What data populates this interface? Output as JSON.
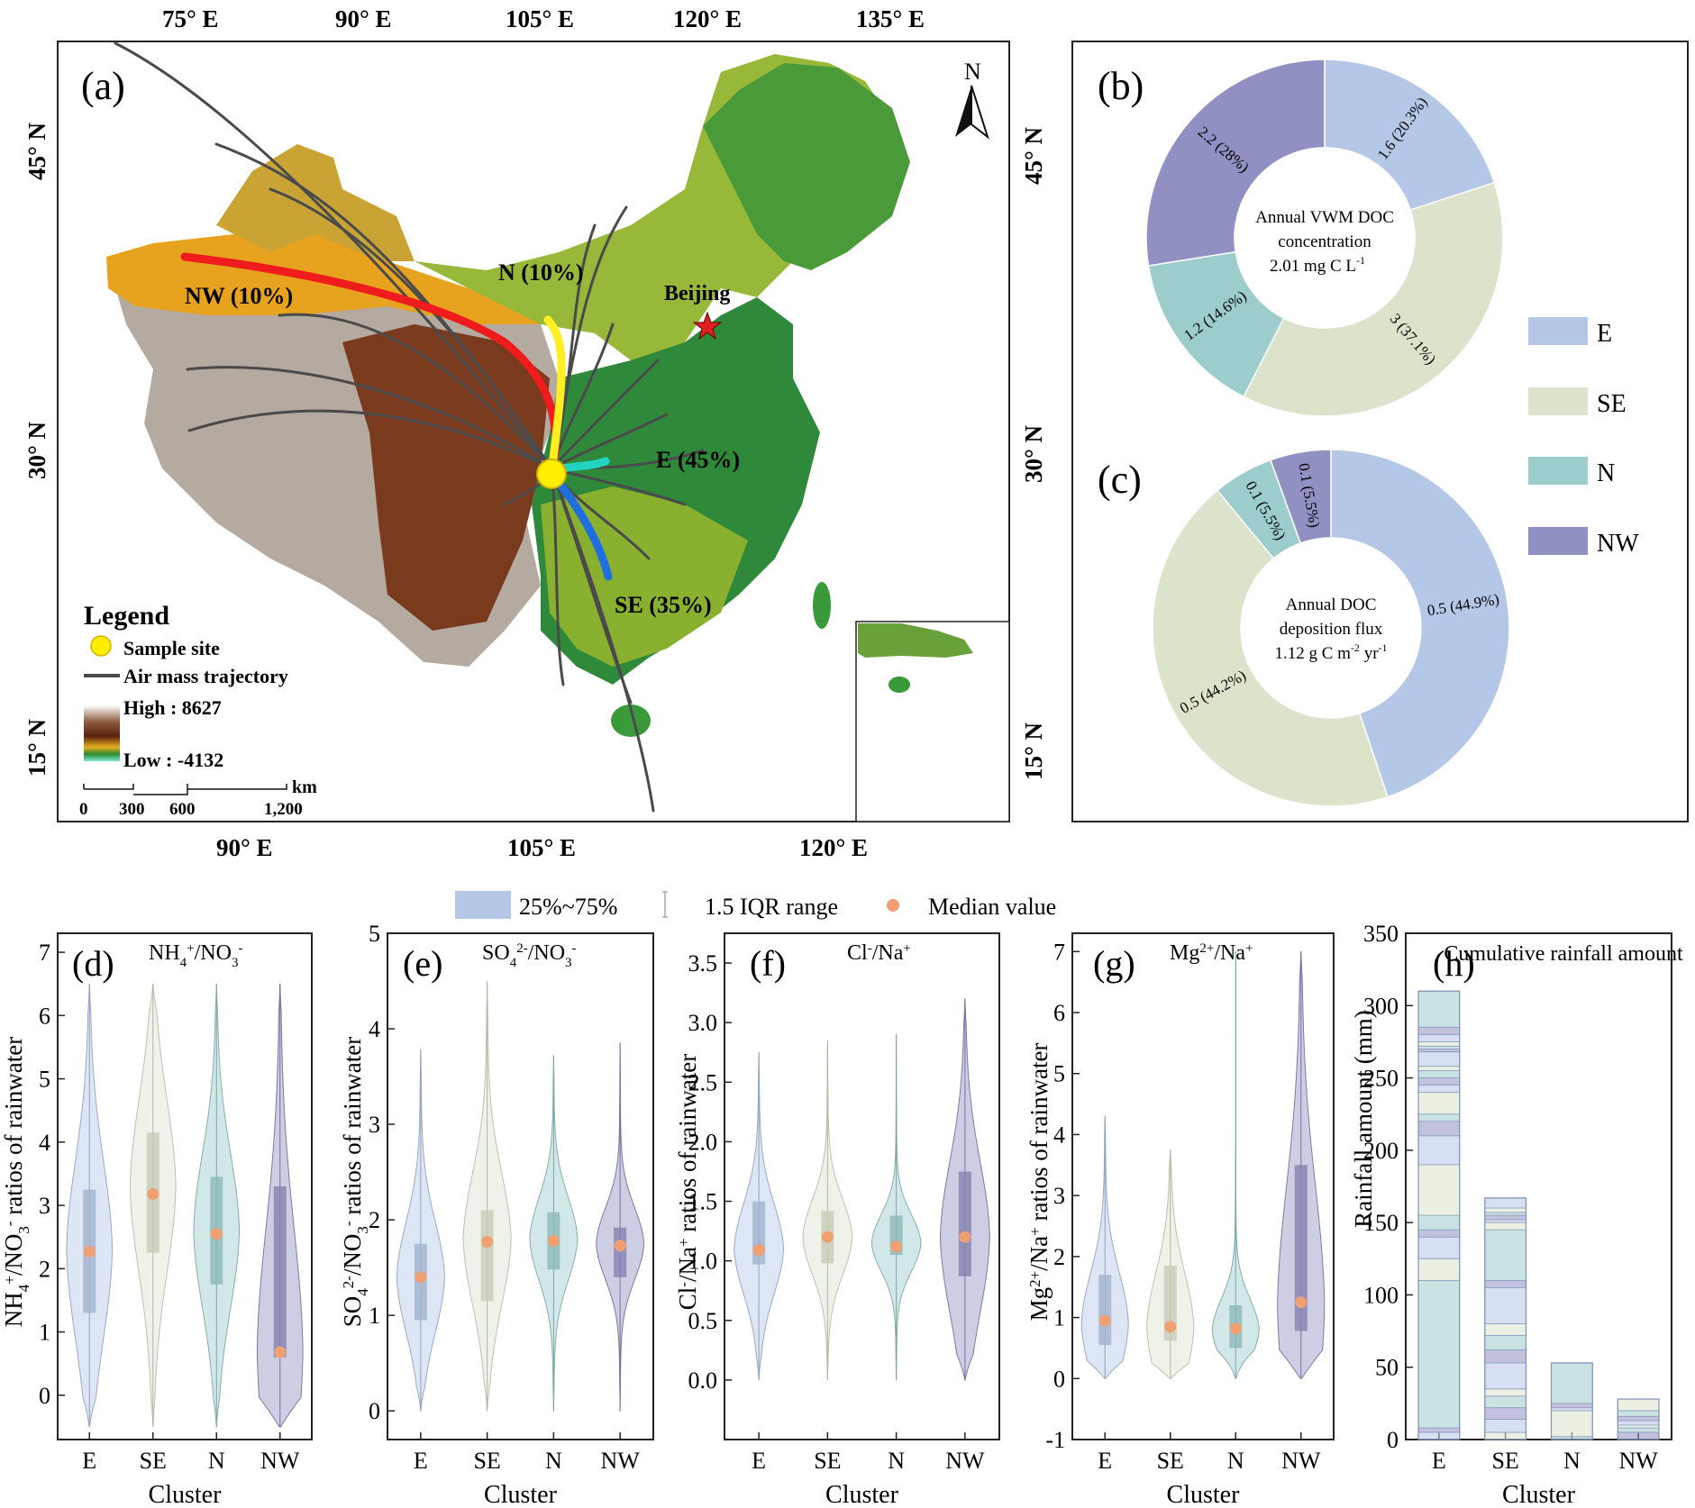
{
  "map": {
    "panel_label": "(a)",
    "top_ticks": [
      "75° E",
      "90° E",
      "105° E",
      "120° E",
      "135° E"
    ],
    "bottom_ticks": [
      "90° E",
      "105° E",
      "120° E"
    ],
    "left_ticks": [
      "45° N",
      "30° N",
      "15° N"
    ],
    "right_ticks": [
      "45° N",
      "30° N",
      "15° N"
    ],
    "north_label": "N",
    "cluster_labels": [
      "NW (10%)",
      "N (10%)",
      "E (45%)",
      "SE (35%)"
    ],
    "city_label": "Beijing",
    "legend": {
      "title": "Legend",
      "sample_site": "Sample site",
      "trajectory": "Air mass trajectory",
      "high": "High : 8627",
      "low": "Low : -4132",
      "scale_unit": "km",
      "scale_ticks": [
        "0",
        "300",
        "600",
        "1,200"
      ]
    },
    "cluster_colors": {
      "NW": "#ee1c1c",
      "N": "#ffee22",
      "E": "#22d4c0",
      "SE": "#1f6fe0"
    }
  },
  "donut_b": {
    "panel_label": "(b)",
    "center": [
      "Annual VWM DOC",
      "concentration",
      "2.01 mg C L"
    ],
    "center_sup": "-1",
    "slices": [
      {
        "cluster": "E",
        "value": 1.6,
        "label": "1.6 (20.3%)"
      },
      {
        "cluster": "SE",
        "value": 3,
        "label": "3 (37.1%)"
      },
      {
        "cluster": "N",
        "value": 1.2,
        "label": "1.2 (14.6%)"
      },
      {
        "cluster": "NW",
        "value": 2.2,
        "label": "2.2 (28%)"
      }
    ]
  },
  "donut_c": {
    "panel_label": "(c)",
    "center": [
      "Annual DOC",
      "deposition flux",
      "1.12 g C m"
    ],
    "center_sup": "-2",
    "center_tail": " yr",
    "center_sup2": "-1",
    "slices": [
      {
        "cluster": "E",
        "value": 44.9,
        "label": "0.5 (44.9%)"
      },
      {
        "cluster": "SE",
        "value": 44.2,
        "label": "0.5 (44.2%)"
      },
      {
        "cluster": "N",
        "value": 5.5,
        "label": "0.1 (5.5%)"
      },
      {
        "cluster": "NW",
        "value": 5.5,
        "label": "0.1 (5.5%)"
      }
    ]
  },
  "cluster_legend": [
    "E",
    "SE",
    "N",
    "NW"
  ],
  "cluster_palette": {
    "E": "#b4c7e7",
    "SE": "#dce3cb",
    "N": "#9ccccc",
    "NW": "#9090c2"
  },
  "violin_legend": {
    "iqr": "25%~75%",
    "range": "1.5 IQR range",
    "median": "Median value"
  },
  "chart_data": [
    {
      "type": "violin",
      "panel": "(d)",
      "title": "NH4+/NO3-",
      "ylabel": "NH4+/NO3- ratios of rainwater",
      "xlabel": "Cluster",
      "categories": [
        "E",
        "SE",
        "N",
        "NW"
      ],
      "ylim": [
        -0.7,
        7.3
      ],
      "yticks": [
        0,
        1,
        2,
        3,
        4,
        5,
        6,
        7
      ],
      "series": [
        {
          "cluster": "E",
          "min": -0.5,
          "max": 6.5,
          "q1": 1.3,
          "q3": 3.25,
          "median": 2.27,
          "mode": 2.3
        },
        {
          "cluster": "SE",
          "min": -0.5,
          "max": 6.5,
          "q1": 2.25,
          "q3": 4.15,
          "median": 3.18,
          "mode": 3.3
        },
        {
          "cluster": "N",
          "min": -0.5,
          "max": 6.5,
          "q1": 1.75,
          "q3": 3.45,
          "median": 2.55,
          "mode": 2.6
        },
        {
          "cluster": "NW",
          "min": -0.5,
          "max": 6.5,
          "q1": 0.6,
          "q3": 3.3,
          "median": 0.68,
          "mode": 0.7
        }
      ]
    },
    {
      "type": "violin",
      "panel": "(e)",
      "title": "SO42-/NO3-",
      "ylabel": "SO42-/NO3- ratios of rainwater",
      "xlabel": "Cluster",
      "categories": [
        "E",
        "SE",
        "N",
        "NW"
      ],
      "ylim": [
        -0.3,
        5.0
      ],
      "yticks": [
        0,
        1,
        2,
        3,
        4,
        5
      ],
      "series": [
        {
          "cluster": "E",
          "min": 0,
          "max": 3.78,
          "q1": 0.95,
          "q3": 1.75,
          "median": 1.4,
          "mode": 1.4
        },
        {
          "cluster": "SE",
          "min": 0,
          "max": 4.5,
          "q1": 1.15,
          "q3": 2.1,
          "median": 1.77,
          "mode": 1.8
        },
        {
          "cluster": "N",
          "min": 0,
          "max": 3.72,
          "q1": 1.48,
          "q3": 2.08,
          "median": 1.78,
          "mode": 1.8
        },
        {
          "cluster": "NW",
          "min": 0,
          "max": 3.85,
          "q1": 1.4,
          "q3": 1.92,
          "median": 1.73,
          "mode": 1.75
        }
      ]
    },
    {
      "type": "violin",
      "panel": "(f)",
      "title": "Cl-/Na+",
      "ylabel": "Cl-/Na+ ratios of rainwater",
      "xlabel": "Cluster",
      "categories": [
        "E",
        "SE",
        "N",
        "NW"
      ],
      "ylim": [
        -0.5,
        3.75
      ],
      "yticks": [
        0.0,
        0.5,
        1.0,
        1.5,
        2.0,
        2.5,
        3.0,
        3.5
      ],
      "series": [
        {
          "cluster": "E",
          "min": 0,
          "max": 2.75,
          "q1": 0.97,
          "q3": 1.5,
          "median": 1.09,
          "mode": 1.1
        },
        {
          "cluster": "SE",
          "min": 0,
          "max": 2.85,
          "q1": 0.98,
          "q3": 1.42,
          "median": 1.2,
          "mode": 1.2
        },
        {
          "cluster": "N",
          "min": 0,
          "max": 2.9,
          "q1": 1.05,
          "q3": 1.38,
          "median": 1.12,
          "mode": 1.15
        },
        {
          "cluster": "NW",
          "min": 0,
          "max": 3.2,
          "q1": 0.87,
          "q3": 1.75,
          "median": 1.2,
          "mode": 1.2
        }
      ]
    },
    {
      "type": "violin",
      "panel": "(g)",
      "title": "Mg2+/Na+",
      "ylabel": "Mg2+/Na+ ratios of rainwater",
      "xlabel": "Cluster",
      "categories": [
        "E",
        "SE",
        "N",
        "NW"
      ],
      "ylim": [
        -1,
        7.3
      ],
      "yticks": [
        -1,
        0,
        1,
        2,
        3,
        4,
        5,
        6,
        7
      ],
      "series": [
        {
          "cluster": "E",
          "min": 0,
          "max": 4.3,
          "q1": 0.55,
          "q3": 1.7,
          "median": 0.95,
          "mode": 0.9
        },
        {
          "cluster": "SE",
          "min": 0,
          "max": 3.75,
          "q1": 0.62,
          "q3": 1.85,
          "median": 0.85,
          "mode": 0.85
        },
        {
          "cluster": "N",
          "min": 0,
          "max": 7.0,
          "q1": 0.5,
          "q3": 1.2,
          "median": 0.82,
          "mode": 0.8
        },
        {
          "cluster": "NW",
          "min": 0,
          "max": 7.0,
          "q1": 0.78,
          "q3": 3.5,
          "median": 1.25,
          "mode": 1.2
        }
      ]
    },
    {
      "type": "bar",
      "panel": "(h)",
      "title": "Cumulative rainfall amount",
      "ylabel": "Rainfall amount (mm)",
      "xlabel": "Cluster",
      "categories": [
        "E",
        "SE",
        "N",
        "NW"
      ],
      "ylim": [
        0,
        350
      ],
      "yticks": [
        0,
        50,
        100,
        150,
        200,
        250,
        300,
        350
      ],
      "values": [
        310,
        167,
        53,
        28
      ],
      "segment_boundaries": [
        [
          0,
          5,
          8,
          110,
          125,
          140,
          145,
          155,
          190,
          210,
          220,
          225,
          240,
          245,
          250,
          255,
          258,
          268,
          270,
          272,
          275,
          280,
          285,
          310
        ],
        [
          0,
          5,
          14,
          22,
          30,
          35,
          53,
          62,
          72,
          80,
          105,
          110,
          145,
          150,
          152,
          155,
          157,
          160,
          167
        ],
        [
          0,
          2,
          20,
          22,
          25,
          53
        ],
        [
          0,
          5,
          8,
          10,
          13,
          16,
          20,
          28
        ]
      ]
    }
  ]
}
